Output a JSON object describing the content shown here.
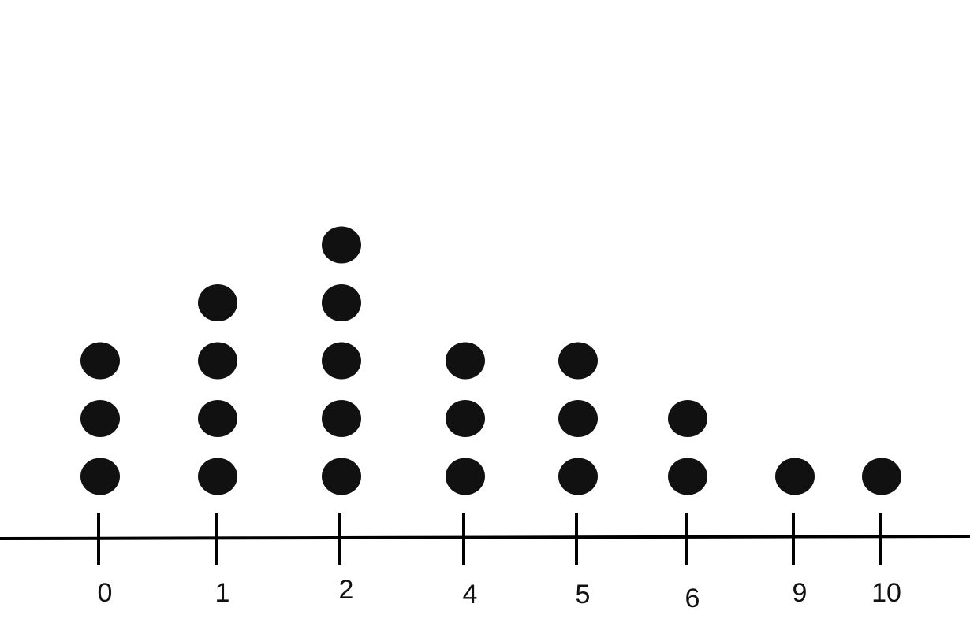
{
  "chart_data": {
    "type": "dot",
    "title": "",
    "xlabel": "",
    "ylabel": "",
    "categories": [
      "0",
      "1",
      "2",
      "4",
      "5",
      "6",
      "9",
      "10"
    ],
    "values": [
      3,
      4,
      5,
      3,
      3,
      2,
      1,
      1
    ],
    "grid": false,
    "dot_color": "#111111",
    "axis_color": "#000000"
  }
}
